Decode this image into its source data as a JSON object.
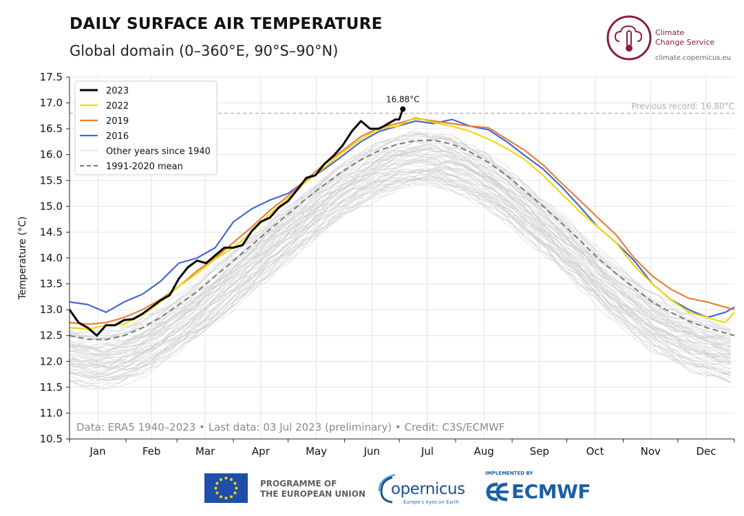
{
  "header": {
    "title": "DAILY SURFACE AIR TEMPERATURE",
    "subtitle": "Global domain (0–360°E, 90°S–90°N)"
  },
  "logos": {
    "c3s_line1": "Climate",
    "c3s_line2": "Change Service",
    "c3s_url": "climate.copernicus.eu",
    "eu_line1": "PROGRAMME OF",
    "eu_line2": "THE EUROPEAN UNION",
    "copernicus": "opernicus",
    "copernicus_tag": "Europe's eyes on Earth",
    "ecmwf_impl": "IMPLEMENTED BY",
    "ecmwf": "ECMWF"
  },
  "colors": {
    "y2023": "#000000",
    "y2022": "#f2d80f",
    "y2019": "#ea7f3a",
    "y2016": "#4566d6",
    "other": "#cfcfcf",
    "mean": "#7f7f7f",
    "record": "#b5b5b5",
    "grid": "#e3e3e3"
  },
  "chart_data": {
    "type": "line",
    "ylabel": "Temperature (°C)",
    "ylim": [
      10.5,
      17.5
    ],
    "yticks": [
      "17.5",
      "17.0",
      "16.5",
      "16.0",
      "15.5",
      "15.0",
      "14.5",
      "14.0",
      "13.5",
      "13.0",
      "12.5",
      "12.0",
      "11.5",
      "11.0",
      "10.5"
    ],
    "xlim": [
      1,
      366
    ],
    "months": [
      "Jan",
      "Feb",
      "Mar",
      "Apr",
      "May",
      "Jun",
      "Jul",
      "Aug",
      "Sep",
      "Oct",
      "Nov",
      "Dec"
    ],
    "grid": true,
    "legend_position": "top-left",
    "legend": [
      "2023",
      "2022",
      "2019",
      "2016",
      "Other years since 1940",
      "1991-2020 mean"
    ],
    "record_label": "Previous record: 16.80°C",
    "record_value": 16.8,
    "peak_label": "16.88°C",
    "peak_point": [
      184,
      16.88
    ],
    "credit": "Data: ERA5 1940–2023 • Last data: 03 Jul 2023 (preliminary) • Credit: C3S/ECMWF",
    "series": [
      {
        "name": "2023",
        "key": "y2023",
        "points": [
          [
            1,
            13.0
          ],
          [
            6,
            12.75
          ],
          [
            11,
            12.65
          ],
          [
            16,
            12.5
          ],
          [
            21,
            12.7
          ],
          [
            26,
            12.7
          ],
          [
            31,
            12.8
          ],
          [
            36,
            12.82
          ],
          [
            41,
            12.92
          ],
          [
            46,
            13.05
          ],
          [
            51,
            13.18
          ],
          [
            56,
            13.28
          ],
          [
            61,
            13.6
          ],
          [
            66,
            13.82
          ],
          [
            71,
            13.95
          ],
          [
            76,
            13.9
          ],
          [
            81,
            14.05
          ],
          [
            86,
            14.2
          ],
          [
            91,
            14.2
          ],
          [
            96,
            14.25
          ],
          [
            101,
            14.52
          ],
          [
            106,
            14.7
          ],
          [
            111,
            14.78
          ],
          [
            116,
            14.98
          ],
          [
            121,
            15.1
          ],
          [
            126,
            15.32
          ],
          [
            131,
            15.55
          ],
          [
            136,
            15.6
          ],
          [
            141,
            15.82
          ],
          [
            146,
            15.98
          ],
          [
            151,
            16.18
          ],
          [
            156,
            16.45
          ],
          [
            161,
            16.65
          ],
          [
            166,
            16.5
          ],
          [
            171,
            16.5
          ],
          [
            176,
            16.6
          ],
          [
            180,
            16.68
          ],
          [
            182,
            16.68
          ],
          [
            184,
            16.88
          ]
        ]
      },
      {
        "name": "2022",
        "key": "y2022",
        "points": [
          [
            1,
            12.65
          ],
          [
            11,
            12.62
          ],
          [
            21,
            12.7
          ],
          [
            31,
            12.72
          ],
          [
            41,
            12.9
          ],
          [
            51,
            13.15
          ],
          [
            61,
            13.45
          ],
          [
            71,
            13.7
          ],
          [
            81,
            13.98
          ],
          [
            91,
            14.2
          ],
          [
            101,
            14.5
          ],
          [
            111,
            14.85
          ],
          [
            121,
            15.15
          ],
          [
            131,
            15.48
          ],
          [
            141,
            15.75
          ],
          [
            151,
            16.05
          ],
          [
            161,
            16.3
          ],
          [
            171,
            16.5
          ],
          [
            181,
            16.55
          ],
          [
            191,
            16.72
          ],
          [
            201,
            16.62
          ],
          [
            211,
            16.55
          ],
          [
            221,
            16.45
          ],
          [
            231,
            16.3
          ],
          [
            241,
            16.12
          ],
          [
            251,
            15.9
          ],
          [
            261,
            15.6
          ],
          [
            271,
            15.25
          ],
          [
            281,
            14.9
          ],
          [
            291,
            14.6
          ],
          [
            301,
            14.3
          ],
          [
            311,
            13.85
          ],
          [
            321,
            13.5
          ],
          [
            331,
            13.2
          ],
          [
            341,
            12.95
          ],
          [
            351,
            12.85
          ],
          [
            361,
            12.75
          ],
          [
            366,
            12.95
          ]
        ]
      },
      {
        "name": "2019",
        "key": "y2019",
        "points": [
          [
            1,
            12.75
          ],
          [
            11,
            12.72
          ],
          [
            21,
            12.75
          ],
          [
            31,
            12.85
          ],
          [
            41,
            13.0
          ],
          [
            51,
            13.2
          ],
          [
            61,
            13.45
          ],
          [
            71,
            13.75
          ],
          [
            81,
            14.0
          ],
          [
            91,
            14.3
          ],
          [
            101,
            14.6
          ],
          [
            111,
            14.92
          ],
          [
            121,
            15.2
          ],
          [
            131,
            15.52
          ],
          [
            141,
            15.82
          ],
          [
            151,
            16.08
          ],
          [
            161,
            16.35
          ],
          [
            171,
            16.52
          ],
          [
            181,
            16.6
          ],
          [
            191,
            16.7
          ],
          [
            201,
            16.65
          ],
          [
            211,
            16.6
          ],
          [
            221,
            16.55
          ],
          [
            231,
            16.52
          ],
          [
            241,
            16.3
          ],
          [
            251,
            16.08
          ],
          [
            261,
            15.8
          ],
          [
            271,
            15.45
          ],
          [
            281,
            15.12
          ],
          [
            291,
            14.78
          ],
          [
            301,
            14.45
          ],
          [
            311,
            14.0
          ],
          [
            321,
            13.65
          ],
          [
            331,
            13.4
          ],
          [
            341,
            13.22
          ],
          [
            351,
            13.15
          ],
          [
            361,
            13.05
          ],
          [
            366,
            13.0
          ]
        ]
      },
      {
        "name": "2016",
        "key": "y2016",
        "points": [
          [
            1,
            13.15
          ],
          [
            11,
            13.1
          ],
          [
            21,
            12.95
          ],
          [
            31,
            13.15
          ],
          [
            41,
            13.3
          ],
          [
            51,
            13.55
          ],
          [
            61,
            13.9
          ],
          [
            71,
            14.0
          ],
          [
            81,
            14.2
          ],
          [
            91,
            14.7
          ],
          [
            101,
            14.95
          ],
          [
            111,
            15.12
          ],
          [
            121,
            15.25
          ],
          [
            131,
            15.5
          ],
          [
            141,
            15.72
          ],
          [
            151,
            15.98
          ],
          [
            161,
            16.25
          ],
          [
            171,
            16.45
          ],
          [
            181,
            16.55
          ],
          [
            191,
            16.65
          ],
          [
            201,
            16.6
          ],
          [
            211,
            16.68
          ],
          [
            221,
            16.55
          ],
          [
            231,
            16.48
          ],
          [
            241,
            16.25
          ],
          [
            251,
            15.98
          ],
          [
            261,
            15.72
          ],
          [
            271,
            15.38
          ],
          [
            281,
            15.0
          ],
          [
            291,
            14.6
          ],
          [
            301,
            14.3
          ],
          [
            311,
            13.95
          ],
          [
            321,
            13.5
          ],
          [
            331,
            13.2
          ],
          [
            341,
            13.0
          ],
          [
            351,
            12.85
          ],
          [
            361,
            12.95
          ],
          [
            366,
            13.05
          ]
        ]
      },
      {
        "name": "1991-2020 mean",
        "key": "mean",
        "points": [
          [
            1,
            12.5
          ],
          [
            11,
            12.43
          ],
          [
            21,
            12.42
          ],
          [
            31,
            12.5
          ],
          [
            41,
            12.65
          ],
          [
            51,
            12.85
          ],
          [
            61,
            13.1
          ],
          [
            71,
            13.35
          ],
          [
            81,
            13.65
          ],
          [
            91,
            13.95
          ],
          [
            101,
            14.25
          ],
          [
            111,
            14.55
          ],
          [
            121,
            14.85
          ],
          [
            131,
            15.15
          ],
          [
            141,
            15.42
          ],
          [
            151,
            15.68
          ],
          [
            161,
            15.9
          ],
          [
            171,
            16.08
          ],
          [
            181,
            16.2
          ],
          [
            191,
            16.27
          ],
          [
            201,
            16.28
          ],
          [
            211,
            16.2
          ],
          [
            221,
            16.05
          ],
          [
            231,
            15.85
          ],
          [
            241,
            15.6
          ],
          [
            251,
            15.3
          ],
          [
            261,
            15.0
          ],
          [
            271,
            14.68
          ],
          [
            281,
            14.35
          ],
          [
            291,
            14.0
          ],
          [
            301,
            13.7
          ],
          [
            311,
            13.42
          ],
          [
            321,
            13.15
          ],
          [
            331,
            12.95
          ],
          [
            341,
            12.78
          ],
          [
            351,
            12.65
          ],
          [
            361,
            12.55
          ],
          [
            366,
            12.5
          ]
        ]
      }
    ]
  }
}
